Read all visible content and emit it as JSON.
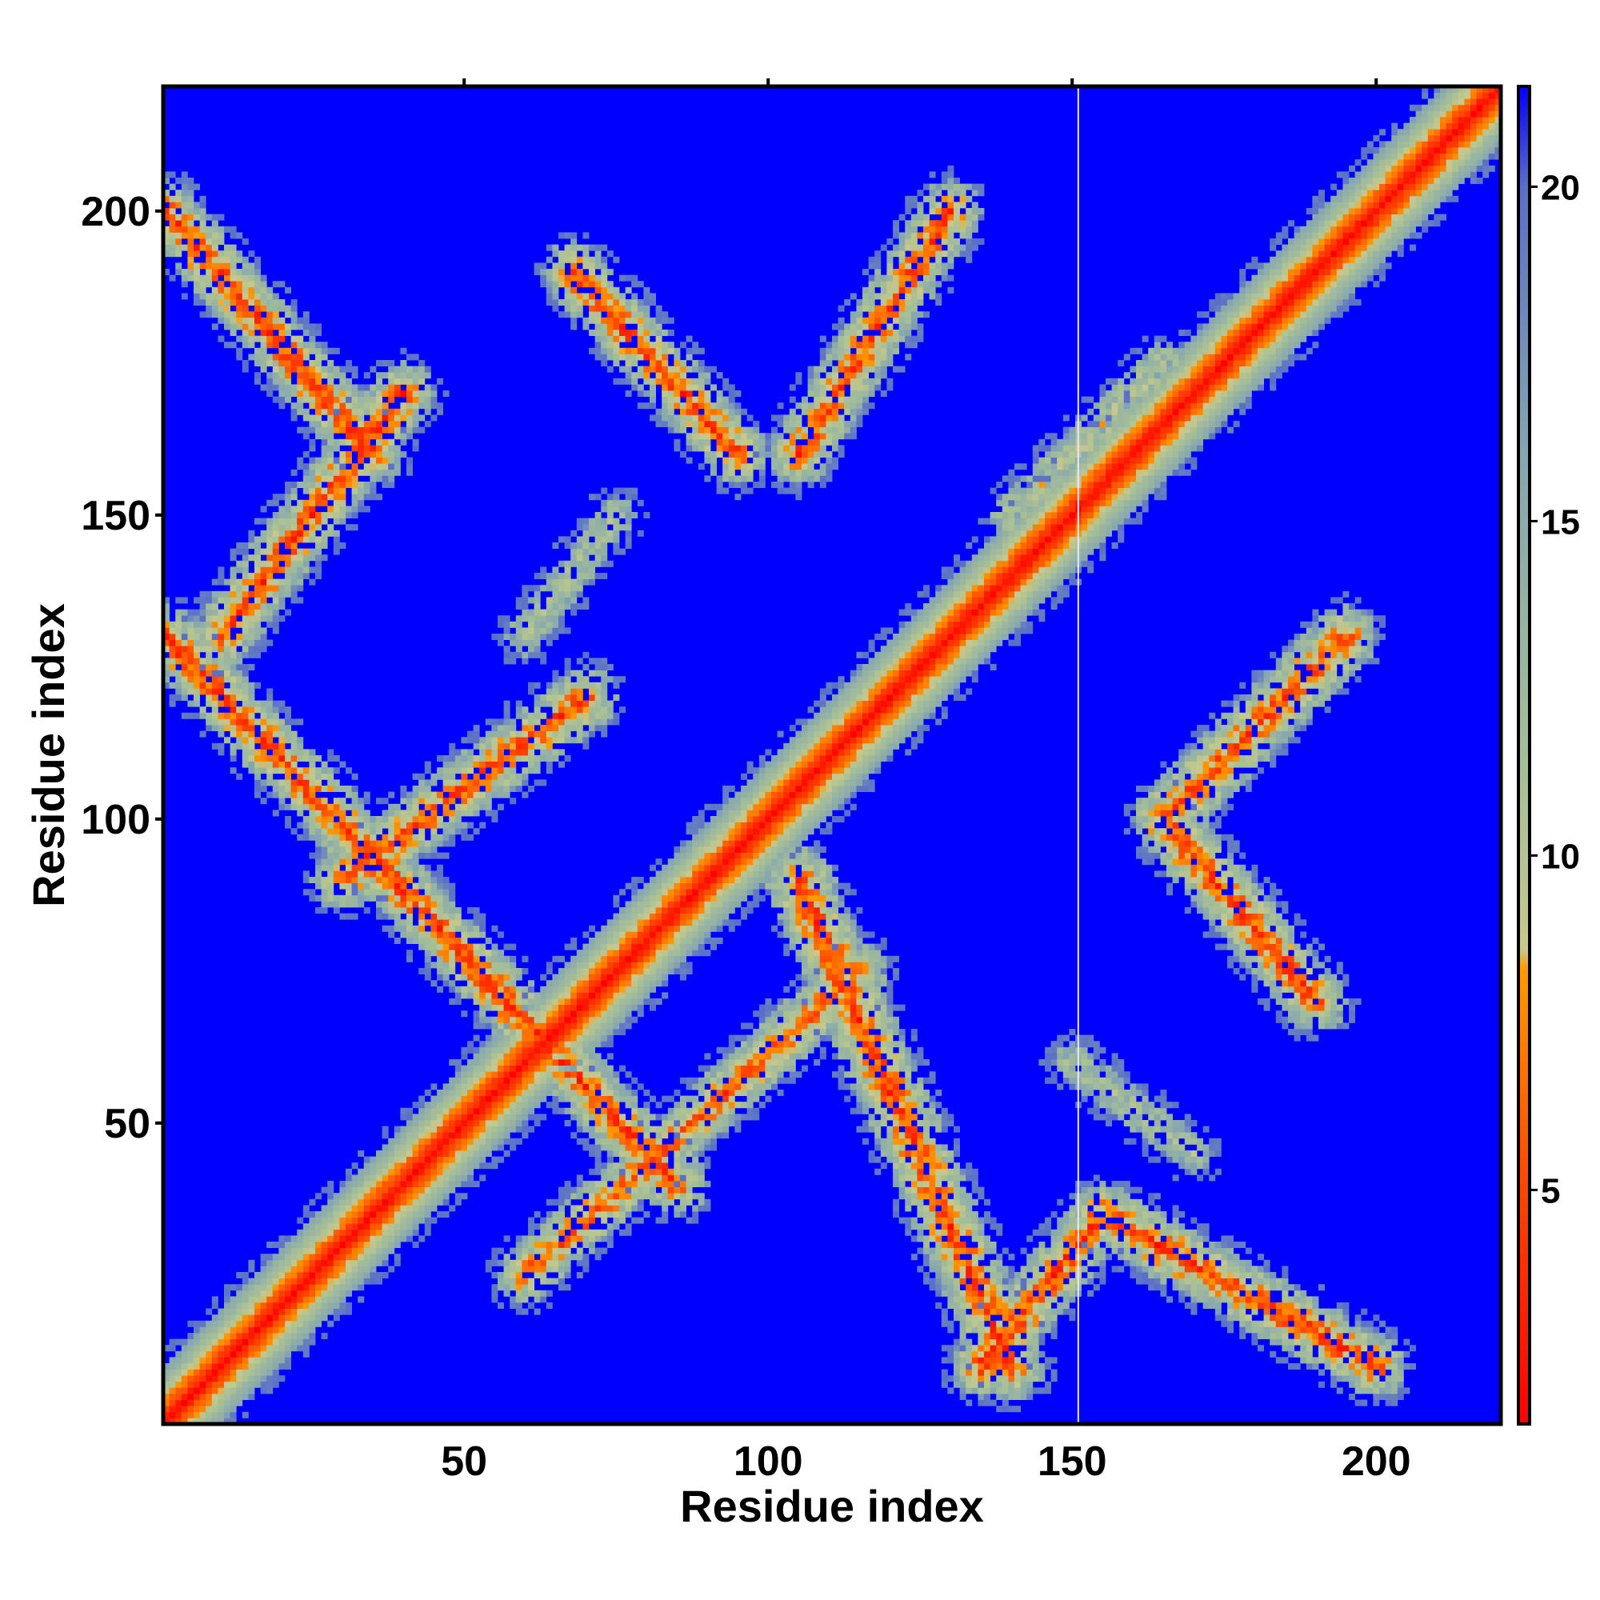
{
  "chart_data": {
    "type": "heatmap",
    "title": "",
    "xlabel": "Residue index",
    "ylabel": "Residue index",
    "xlim": [
      1,
      220
    ],
    "ylim": [
      1,
      220
    ],
    "x_ticks": [
      50,
      100,
      150,
      200
    ],
    "y_ticks": [
      50,
      100,
      150,
      200
    ],
    "grid": false,
    "colorbar": {
      "range": [
        1.5,
        21.5
      ],
      "ticks": [
        5,
        10,
        15,
        20
      ],
      "colors": [
        "#ff0000",
        "#ff4400",
        "#ff9900",
        "#c8c88c",
        "#a8c096",
        "#86a6b0",
        "#5a6ec8",
        "#0000ff"
      ],
      "stops": [
        1.5,
        5,
        8.3,
        8.6,
        11,
        16,
        20,
        21.5
      ]
    },
    "cutoff_color": "#0000ff",
    "contact_bands": [
      {
        "name": "main-diagonal",
        "from": [
          1,
          1
        ],
        "to": [
          220,
          220
        ],
        "halfwidth": 6.5,
        "min_distance": 2.0
      },
      {
        "name": "anti-band-lower-left",
        "from": [
          1,
          130
        ],
        "to": [
          85,
          40
        ],
        "halfwidth": 5.0,
        "min_distance": 5.0
      },
      {
        "name": "anti-band-upper-left",
        "from": [
          1,
          200
        ],
        "to": [
          35,
          160
        ],
        "halfwidth": 5.0,
        "min_distance": 5.0
      },
      {
        "name": "anti-band-top-middle",
        "from": [
          68,
          190
        ],
        "to": [
          95,
          160
        ],
        "halfwidth": 5.0,
        "min_distance": 5.0
      },
      {
        "name": "anti-band-middle-right",
        "from": [
          105,
          90
        ],
        "to": [
          140,
          10
        ],
        "halfwidth": 5.5,
        "min_distance": 5.0
      },
      {
        "name": "band-upper-left",
        "from": [
          10,
          130
        ],
        "to": [
          40,
          170
        ],
        "halfwidth": 5.0,
        "min_distance": 5.0
      },
      {
        "name": "band-middle",
        "from": [
          30,
          90
        ],
        "to": [
          70,
          120
        ],
        "halfwidth": 5.0,
        "min_distance": 5.5
      },
      {
        "name": "band-lower-middle",
        "from": [
          60,
          25
        ],
        "to": [
          115,
          75
        ],
        "halfwidth": 4.5,
        "min_distance": 6.0
      },
      {
        "name": "band-top-middle",
        "from": [
          105,
          160
        ],
        "to": [
          130,
          200
        ],
        "halfwidth": 5.0,
        "min_distance": 5.5
      },
      {
        "name": "band-right",
        "from": [
          165,
          100
        ],
        "to": [
          195,
          130
        ],
        "halfwidth": 5.0,
        "min_distance": 5.5
      },
      {
        "name": "band-bottom-right",
        "from": [
          135,
          10
        ],
        "to": [
          155,
          35
        ],
        "halfwidth": 5.0,
        "min_distance": 5.0
      },
      {
        "name": "anti-band-right",
        "from": [
          165,
          100
        ],
        "to": [
          190,
          70
        ],
        "halfwidth": 5.0,
        "min_distance": 5.0
      },
      {
        "name": "anti-band-bottom-right",
        "from": [
          155,
          35
        ],
        "to": [
          200,
          10
        ],
        "halfwidth": 5.0,
        "min_distance": 5.0
      },
      {
        "name": "sparse-mid-right",
        "from": [
          150,
          60
        ],
        "to": [
          170,
          45
        ],
        "halfwidth": 3.0,
        "min_distance": 12.0
      },
      {
        "name": "sparse-center",
        "from": [
          75,
          150
        ],
        "to": [
          60,
          130
        ],
        "halfwidth": 3.0,
        "min_distance": 12.0
      },
      {
        "name": "sparse-right-mid",
        "from": [
          140,
          150
        ],
        "to": [
          165,
          175
        ],
        "halfwidth": 3.5,
        "min_distance": 11.0
      }
    ],
    "blank_column_x": 151
  }
}
